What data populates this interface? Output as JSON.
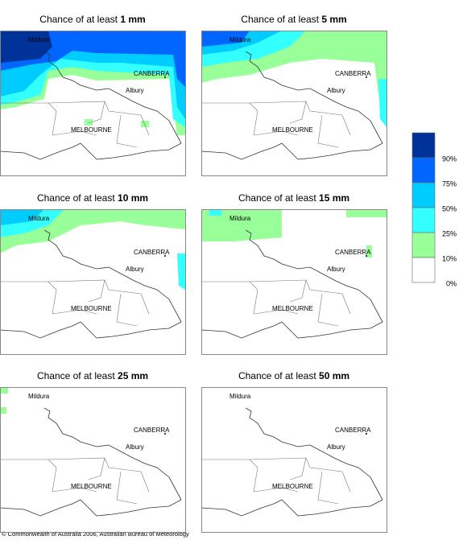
{
  "panels": [
    {
      "title_prefix": "Chance of at least",
      "title_amount": "1 mm"
    },
    {
      "title_prefix": "Chance of at least",
      "title_amount": "5 mm"
    },
    {
      "title_prefix": "Chance of at least",
      "title_amount": "10 mm"
    },
    {
      "title_prefix": "Chance of at least",
      "title_amount": "15 mm"
    },
    {
      "title_prefix": "Chance of at least",
      "title_amount": "25 mm"
    },
    {
      "title_prefix": "Chance of at least",
      "title_amount": "50 mm"
    }
  ],
  "places": [
    "Mildura",
    "CANBERRA",
    "Albury",
    "MELBOURNE"
  ],
  "legend": {
    "labels": [
      "90%",
      "75%",
      "50%",
      "25%",
      "10%",
      "0%"
    ],
    "colors": [
      "#003399",
      "#0066ff",
      "#00ccff",
      "#33ffff",
      "#99ff99",
      "#ffffff"
    ]
  },
  "footer": "© Commonwealth of Australia 2006, Australian Bureau of Meteorology"
}
